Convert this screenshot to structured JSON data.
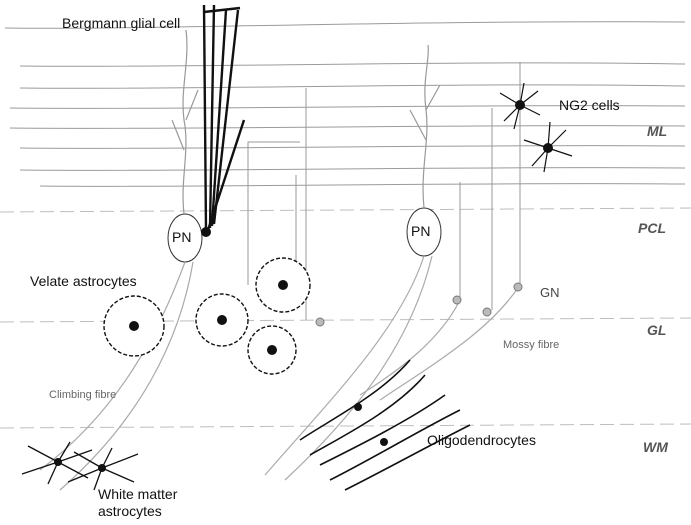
{
  "labels": {
    "bergmann": "Bergmann glial cell",
    "ng2": "NG2 cells",
    "pn_left": "PN",
    "pn_right": "PN",
    "velate": "Velate astrocytes",
    "climbing": "Climbing fibre",
    "gn": "GN",
    "mossy": "Mossy fibre",
    "oligo": "Oligodendrocytes",
    "wm_astro_1": "White matter",
    "wm_astro_2": "astrocytes"
  },
  "layers": {
    "ml": "ML",
    "pcl": "PCL",
    "gl": "GL",
    "wm": "WM"
  },
  "colors": {
    "ink": "#111111",
    "grey_line": "#9a9a9a",
    "layer_label": "#555555"
  }
}
